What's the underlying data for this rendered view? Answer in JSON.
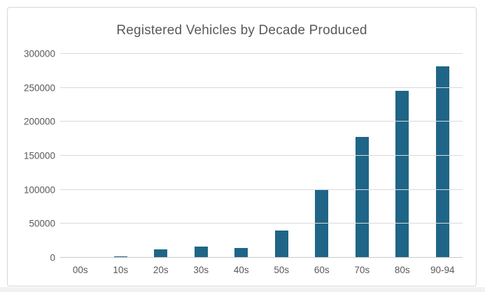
{
  "chart_data": {
    "type": "bar",
    "title": "Registered Vehicles by Decade Produced",
    "categories": [
      "00s",
      "10s",
      "20s",
      "30s",
      "40s",
      "50s",
      "60s",
      "70s",
      "80s",
      "90-94"
    ],
    "values": [
      700,
      2000,
      12000,
      16000,
      14000,
      40000,
      100500,
      177500,
      246000,
      281500
    ],
    "xlabel": "",
    "ylabel": "",
    "ylim": [
      0,
      300000
    ],
    "ytick_step": 50000,
    "ytick_labels": [
      "0",
      "50000",
      "100000",
      "150000",
      "200000",
      "250000",
      "300000"
    ],
    "grid": "horizontal-only",
    "legend_position": "none",
    "colors": {
      "bar_fill": "#1f6587",
      "title_text": "#595959",
      "tick_text": "#595959",
      "gridline": "#d9d9d9",
      "axis_baseline": "#c9c9c9",
      "frame_border": "#d6d6d6",
      "background": "#ffffff"
    }
  }
}
